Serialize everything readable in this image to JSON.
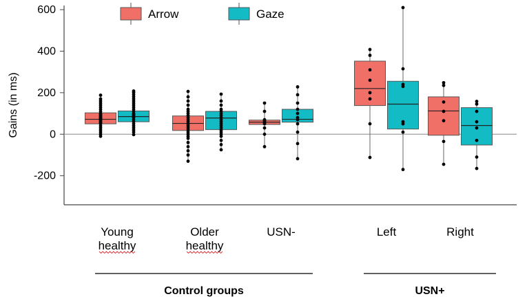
{
  "chart_data": {
    "type": "box",
    "ylabel": "Gains (in ms)",
    "ylim": [
      -340,
      620
    ],
    "yticks": [
      -200,
      0,
      200,
      400,
      600
    ],
    "legend": [
      {
        "name": "Arrow",
        "color": "#F07068"
      },
      {
        "name": "Gaze",
        "color": "#13BCC4"
      }
    ],
    "categories": [
      {
        "lines": [
          "Young",
          "healthy"
        ]
      },
      {
        "lines": [
          "Older",
          "healthy"
        ]
      },
      {
        "lines": [
          "USN-"
        ]
      },
      {
        "lines": [
          "Left"
        ]
      },
      {
        "lines": [
          "Right"
        ]
      }
    ],
    "groups": [
      {
        "label": "Control groups",
        "from": 0,
        "to": 2
      },
      {
        "label": "USN+",
        "from": 3,
        "to": 4
      }
    ],
    "series": [
      {
        "name": "Arrow",
        "color": "#F07068",
        "boxes": [
          {
            "min": -10,
            "q1": 50,
            "median": 72,
            "q3": 103,
            "max": 188
          },
          {
            "min": -130,
            "q1": 18,
            "median": 52,
            "q3": 88,
            "max": 206
          },
          {
            "min": -60,
            "q1": 47,
            "median": 58,
            "q3": 68,
            "max": 150
          },
          {
            "min": -112,
            "q1": 138,
            "median": 220,
            "q3": 352,
            "max": 408
          },
          {
            "min": -145,
            "q1": -5,
            "median": 112,
            "q3": 180,
            "max": 248
          }
        ],
        "points": [
          [
            -10,
            0,
            10,
            20,
            30,
            40,
            50,
            55,
            60,
            65,
            70,
            72,
            75,
            78,
            80,
            85,
            90,
            95,
            100,
            110,
            120,
            130,
            140,
            150,
            160,
            170,
            188
          ],
          [
            -130,
            -100,
            -80,
            -60,
            -40,
            -20,
            -10,
            0,
            10,
            20,
            30,
            40,
            50,
            60,
            70,
            80,
            90,
            100,
            110,
            120,
            140,
            160,
            180,
            206
          ],
          [
            -60,
            0,
            30,
            50,
            55,
            60,
            65,
            70,
            110,
            150
          ],
          [
            -112,
            50,
            170,
            200,
            260,
            310,
            380,
            408
          ],
          [
            -145,
            -35,
            65,
            110,
            155,
            235,
            248
          ]
        ]
      },
      {
        "name": "Gaze",
        "color": "#13BCC4",
        "boxes": [
          {
            "min": -2,
            "q1": 60,
            "median": 85,
            "q3": 112,
            "max": 208
          },
          {
            "min": -75,
            "q1": 22,
            "median": 78,
            "q3": 110,
            "max": 193
          },
          {
            "min": -118,
            "q1": 58,
            "median": 72,
            "q3": 120,
            "max": 228
          },
          {
            "min": -170,
            "q1": 25,
            "median": 145,
            "q3": 255,
            "max": 610
          },
          {
            "min": -165,
            "q1": -52,
            "median": 42,
            "q3": 128,
            "max": 158
          }
        ],
        "points": [
          [
            -2,
            10,
            20,
            30,
            40,
            50,
            60,
            70,
            80,
            85,
            90,
            95,
            100,
            110,
            120,
            130,
            140,
            150,
            160,
            170,
            180,
            190,
            200,
            208
          ],
          [
            -75,
            -50,
            -30,
            -10,
            0,
            10,
            20,
            30,
            40,
            50,
            60,
            70,
            80,
            90,
            100,
            110,
            120,
            140,
            160,
            193
          ],
          [
            -118,
            -45,
            10,
            50,
            70,
            80,
            100,
            120,
            150,
            190,
            228
          ],
          [
            -170,
            10,
            50,
            60,
            230,
            240,
            315,
            610
          ],
          [
            -165,
            -110,
            -30,
            30,
            60,
            110,
            145,
            158
          ]
        ]
      }
    ]
  }
}
